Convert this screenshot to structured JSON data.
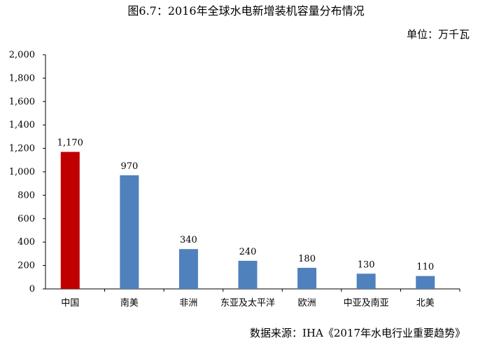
{
  "chart_data": {
    "type": "bar",
    "title": "图6.7：2016年全球水电新增装机容量分布情况",
    "unit_label": "单位：万千瓦",
    "source": "数据来源：IHA《2017年水电行业重要趋势》",
    "categories": [
      "中国",
      "南美",
      "非洲",
      "东亚及太平洋",
      "欧洲",
      "中亚及南亚",
      "北美"
    ],
    "values": [
      1170,
      970,
      340,
      240,
      180,
      130,
      110
    ],
    "data_labels": [
      "1,170",
      "970",
      "340",
      "240",
      "180",
      "130",
      "110"
    ],
    "ylim": [
      0,
      2000
    ],
    "yticks": [
      0,
      200,
      400,
      600,
      800,
      1000,
      1200,
      1400,
      1600,
      1800,
      2000
    ],
    "ytick_labels": [
      "0",
      "200",
      "400",
      "600",
      "800",
      "1,000",
      "1,200",
      "1,400",
      "1,600",
      "1,800",
      "2,000"
    ],
    "grid": false,
    "colors": {
      "highlight": "#c00000",
      "default": "#4f81bd",
      "axis": "#000000"
    }
  }
}
